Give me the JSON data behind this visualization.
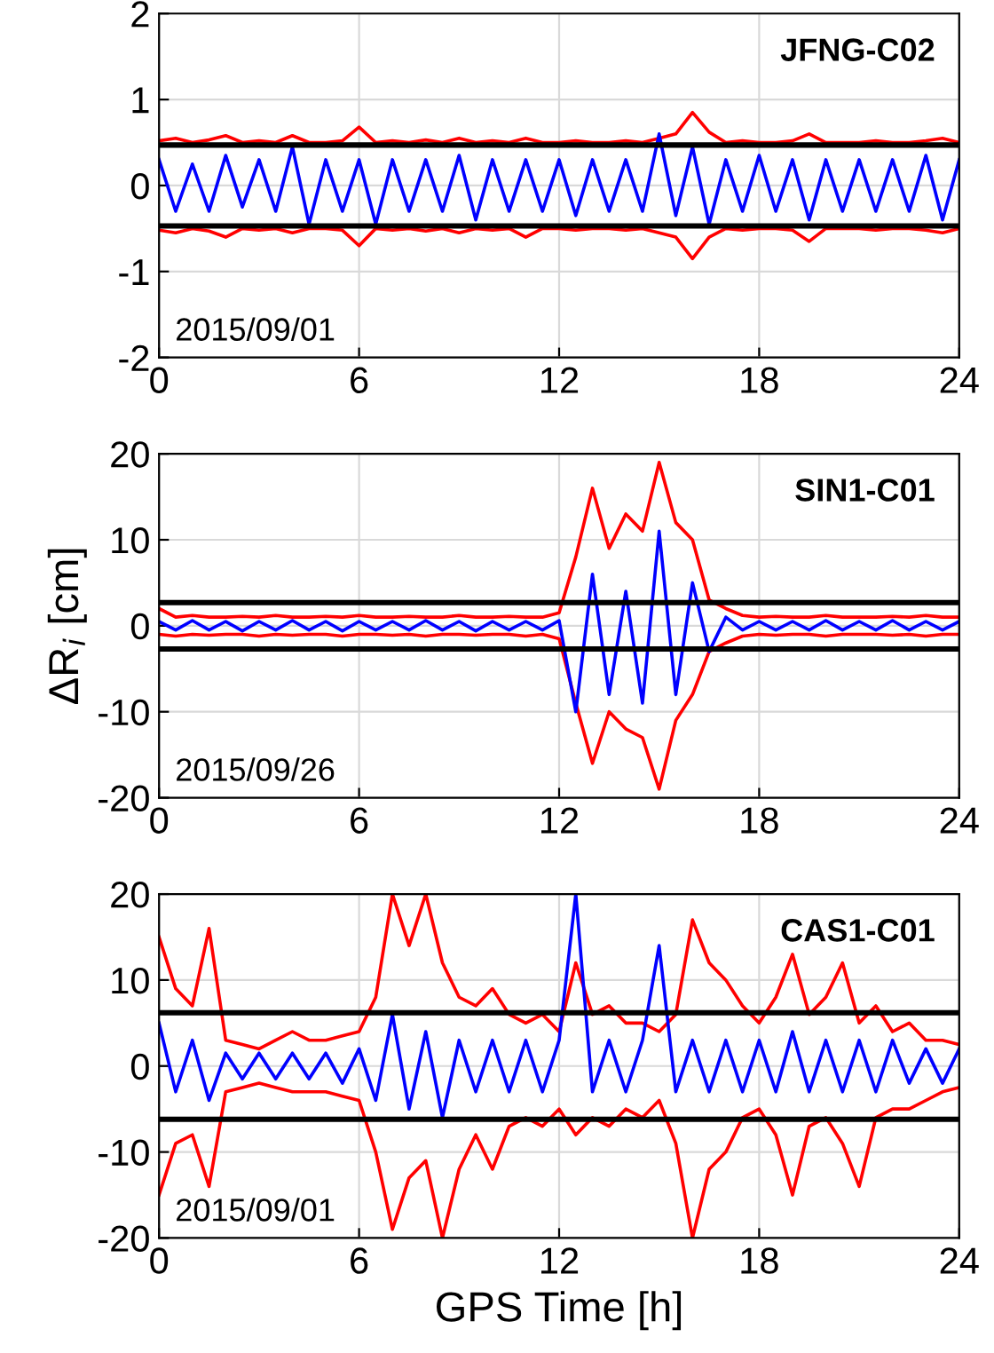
{
  "chart_data": [
    {
      "type": "line",
      "xlim": [
        0,
        24
      ],
      "xticks": [
        0,
        6,
        12,
        18,
        24
      ],
      "ylim": [
        -2,
        2
      ],
      "yticks": [
        -2,
        -1,
        0,
        1,
        2
      ],
      "grid": true,
      "x": [
        0,
        0.5,
        1,
        1.5,
        2,
        2.5,
        3,
        3.5,
        4,
        4.5,
        5,
        5.5,
        6,
        6.5,
        7,
        7.5,
        8,
        8.5,
        9,
        9.5,
        10,
        10.5,
        11,
        11.5,
        12,
        12.5,
        13,
        13.5,
        14,
        14.5,
        15,
        15.5,
        16,
        16.5,
        17,
        17.5,
        18,
        18.5,
        19,
        19.5,
        20,
        20.5,
        21,
        21.5,
        22,
        22.5,
        23,
        23.5,
        24
      ],
      "series": [
        {
          "color": "#ff0000",
          "values": [
            0.52,
            0.55,
            0.5,
            0.53,
            0.58,
            0.5,
            0.52,
            0.5,
            0.58,
            0.5,
            0.5,
            0.52,
            0.68,
            0.5,
            0.52,
            0.5,
            0.53,
            0.5,
            0.55,
            0.5,
            0.52,
            0.5,
            0.55,
            0.5,
            0.5,
            0.52,
            0.5,
            0.5,
            0.52,
            0.5,
            0.55,
            0.6,
            0.85,
            0.62,
            0.5,
            0.52,
            0.5,
            0.5,
            0.52,
            0.6,
            0.5,
            0.5,
            0.5,
            0.52,
            0.5,
            0.5,
            0.52,
            0.55,
            0.5
          ]
        },
        {
          "color": "#ff0000",
          "values": [
            -0.52,
            -0.55,
            -0.5,
            -0.53,
            -0.6,
            -0.5,
            -0.52,
            -0.5,
            -0.55,
            -0.5,
            -0.5,
            -0.52,
            -0.7,
            -0.5,
            -0.52,
            -0.5,
            -0.53,
            -0.5,
            -0.55,
            -0.5,
            -0.52,
            -0.5,
            -0.6,
            -0.5,
            -0.5,
            -0.52,
            -0.5,
            -0.5,
            -0.52,
            -0.5,
            -0.55,
            -0.6,
            -0.85,
            -0.6,
            -0.5,
            -0.52,
            -0.5,
            -0.5,
            -0.52,
            -0.65,
            -0.5,
            -0.5,
            -0.5,
            -0.52,
            -0.5,
            -0.5,
            -0.52,
            -0.55,
            -0.5
          ]
        },
        {
          "color": "#0000ff",
          "values": [
            0.3,
            -0.3,
            0.25,
            -0.3,
            0.35,
            -0.25,
            0.3,
            -0.3,
            0.45,
            -0.45,
            0.3,
            -0.3,
            0.3,
            -0.45,
            0.3,
            -0.3,
            0.3,
            -0.3,
            0.35,
            -0.4,
            0.3,
            -0.3,
            0.3,
            -0.3,
            0.3,
            -0.35,
            0.3,
            -0.3,
            0.3,
            -0.3,
            0.6,
            -0.35,
            0.45,
            -0.45,
            0.3,
            -0.3,
            0.35,
            -0.3,
            0.3,
            -0.4,
            0.3,
            -0.3,
            0.3,
            -0.3,
            0.3,
            -0.3,
            0.35,
            -0.4,
            0.3
          ]
        }
      ],
      "ref_lines": [
        {
          "axis": "y",
          "value": 0.47,
          "color": "#000000"
        },
        {
          "axis": "y",
          "value": -0.47,
          "color": "#000000"
        }
      ],
      "annotations": [
        "JFNG-C02",
        "2015/09/01"
      ]
    },
    {
      "type": "line",
      "xlim": [
        0,
        24
      ],
      "xticks": [
        0,
        6,
        12,
        18,
        24
      ],
      "ylim": [
        -20,
        20
      ],
      "yticks": [
        -20,
        -10,
        0,
        10,
        20
      ],
      "grid": true,
      "ylabel": "ΔR$_{i}$ [cm]",
      "x": [
        0,
        0.5,
        1,
        1.5,
        2,
        2.5,
        3,
        3.5,
        4,
        4.5,
        5,
        5.5,
        6,
        6.5,
        7,
        7.5,
        8,
        8.5,
        9,
        9.5,
        10,
        10.5,
        11,
        11.5,
        12,
        12.5,
        13,
        13.5,
        14,
        14.5,
        15,
        15.5,
        16,
        16.5,
        17,
        17.5,
        18,
        18.5,
        19,
        19.5,
        20,
        20.5,
        21,
        21.5,
        22,
        22.5,
        23,
        23.5,
        24
      ],
      "series": [
        {
          "color": "#ff0000",
          "values": [
            2,
            1,
            1.2,
            1,
            1,
            1.1,
            1,
            1.2,
            1,
            1,
            1.1,
            1,
            1.2,
            1,
            1,
            1.1,
            1,
            1,
            1.2,
            1,
            1,
            1.1,
            1,
            1,
            1.5,
            8,
            16,
            9,
            13,
            11,
            19,
            12,
            10,
            3,
            2,
            1.2,
            1,
            1.1,
            1,
            1,
            1.2,
            1,
            1,
            1,
            1.1,
            1,
            1.2,
            1,
            1
          ]
        },
        {
          "color": "#ff0000",
          "values": [
            -1,
            -1.2,
            -1,
            -1.1,
            -1,
            -1,
            -1.2,
            -1,
            -1.1,
            -1,
            -1,
            -1.2,
            -1,
            -1,
            -1.1,
            -1,
            -1.2,
            -1,
            -1,
            -1.1,
            -1,
            -1,
            -1.2,
            -1,
            -1.5,
            -9,
            -16,
            -10,
            -12,
            -13,
            -19,
            -11,
            -8,
            -3,
            -2,
            -1.2,
            -1,
            -1.1,
            -1,
            -1,
            -1.2,
            -1,
            -1,
            -1,
            -1.1,
            -1,
            -1.2,
            -1,
            -1
          ]
        },
        {
          "color": "#0000ff",
          "values": [
            0.5,
            -0.5,
            0.6,
            -0.5,
            0.5,
            -0.6,
            0.5,
            -0.5,
            0.6,
            -0.5,
            0.5,
            -0.6,
            0.5,
            -0.5,
            0.5,
            -0.5,
            0.6,
            -0.5,
            0.5,
            -0.6,
            0.5,
            -0.5,
            0.5,
            -0.5,
            0.6,
            -10,
            6,
            -8,
            4,
            -9,
            11,
            -8,
            5,
            -3,
            1,
            -0.5,
            0.5,
            -0.5,
            0.5,
            -0.5,
            0.6,
            -0.5,
            0.5,
            -0.5,
            0.6,
            -0.5,
            0.5,
            -0.5,
            0.5
          ]
        }
      ],
      "ref_lines": [
        {
          "axis": "y",
          "value": 2.7,
          "color": "#000000"
        },
        {
          "axis": "y",
          "value": -2.7,
          "color": "#000000"
        }
      ],
      "annotations": [
        "SIN1-C01",
        "2015/09/26"
      ]
    },
    {
      "type": "line",
      "xlim": [
        0,
        24
      ],
      "xticks": [
        0,
        6,
        12,
        18,
        24
      ],
      "ylim": [
        -20,
        20
      ],
      "yticks": [
        -20,
        -10,
        0,
        10,
        20
      ],
      "grid": true,
      "xlabel": "GPS Time [h]",
      "x": [
        0,
        0.5,
        1,
        1.5,
        2,
        2.5,
        3,
        3.5,
        4,
        4.5,
        5,
        5.5,
        6,
        6.5,
        7,
        7.5,
        8,
        8.5,
        9,
        9.5,
        10,
        10.5,
        11,
        11.5,
        12,
        12.5,
        13,
        13.5,
        14,
        14.5,
        15,
        15.5,
        16,
        16.5,
        17,
        17.5,
        18,
        18.5,
        19,
        19.5,
        20,
        20.5,
        21,
        21.5,
        22,
        22.5,
        23,
        23.5,
        24
      ],
      "series": [
        {
          "color": "#ff0000",
          "values": [
            15,
            9,
            7,
            16,
            3,
            2.5,
            2,
            3,
            4,
            3,
            3,
            3.5,
            4,
            8,
            20,
            14,
            20,
            12,
            8,
            7,
            9,
            6,
            5,
            6,
            4,
            12,
            6,
            7,
            5,
            5,
            4,
            6,
            17,
            12,
            10,
            7,
            5,
            8,
            13,
            6,
            8,
            12,
            5,
            7,
            4,
            5,
            3,
            3,
            2.5
          ]
        },
        {
          "color": "#ff0000",
          "values": [
            -15,
            -9,
            -8,
            -14,
            -3,
            -2.5,
            -2,
            -2.5,
            -3,
            -3,
            -3,
            -3.5,
            -4,
            -10,
            -19,
            -13,
            -11,
            -20,
            -12,
            -8,
            -12,
            -7,
            -6,
            -7,
            -5,
            -8,
            -6,
            -7,
            -5,
            -6,
            -4,
            -9,
            -20,
            -12,
            -10,
            -6,
            -5,
            -8,
            -15,
            -7,
            -6,
            -9,
            -14,
            -6,
            -5,
            -5,
            -4,
            -3,
            -2.5
          ]
        },
        {
          "color": "#0000ff",
          "values": [
            5,
            -3,
            3,
            -4,
            1.5,
            -1.5,
            1.5,
            -1.5,
            1.5,
            -1.5,
            1.5,
            -2,
            2,
            -4,
            6,
            -5,
            4,
            -6,
            3,
            -3,
            3,
            -3,
            3,
            -3,
            3,
            20,
            -3,
            3,
            -3,
            3,
            14,
            -3,
            3,
            -3,
            3,
            -3,
            3,
            -3,
            4,
            -3,
            3,
            -3,
            3,
            -3,
            3,
            -2,
            2,
            -2,
            2
          ]
        }
      ],
      "ref_lines": [
        {
          "axis": "y",
          "value": 6.2,
          "color": "#000000"
        },
        {
          "axis": "y",
          "value": -6.2,
          "color": "#000000"
        }
      ],
      "annotations": [
        "CAS1-C01",
        "2015/09/01"
      ]
    }
  ]
}
